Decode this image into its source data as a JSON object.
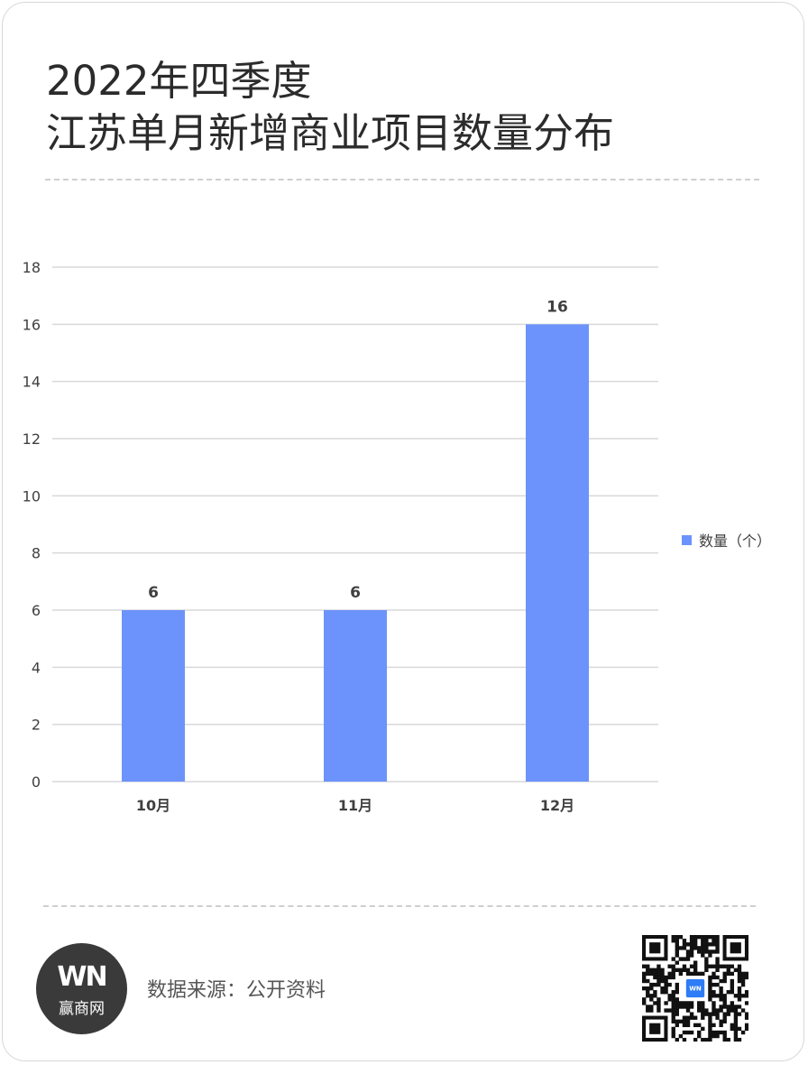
{
  "title": {
    "line1": "2022年四季度",
    "line2": "江苏单月新增商业项目数量分布"
  },
  "colors": {
    "bar": "#6c93fb",
    "grid": "#d9d9d9",
    "text": "#404040",
    "title": "#2b2b2b",
    "logo_bg": "#3a3a3a"
  },
  "chart_data": {
    "type": "bar",
    "categories": [
      "10月",
      "11月",
      "12月"
    ],
    "series": [
      {
        "name": "数量（个）",
        "values": [
          6,
          6,
          16
        ]
      }
    ],
    "ylim": [
      0,
      18
    ],
    "yticks": [
      0,
      2,
      4,
      6,
      8,
      10,
      12,
      14,
      16,
      18
    ],
    "data_labels": [
      "6",
      "6",
      "16"
    ],
    "grid": true,
    "legend_position": "right"
  },
  "legend": {
    "label": "数量（个）"
  },
  "footer": {
    "logo_mark": "WN",
    "logo_text": "赢商网",
    "source": "数据来源：公开资料",
    "qr_badge": "WN"
  }
}
